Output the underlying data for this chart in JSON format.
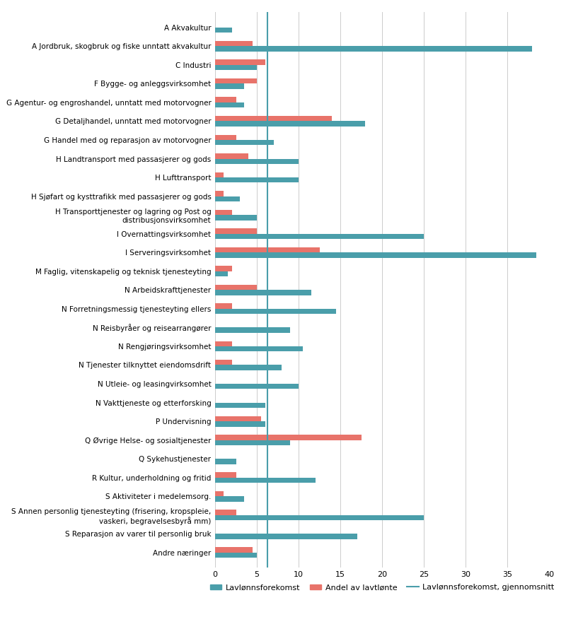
{
  "categories": [
    "A Akvakultur",
    "A Jordbruk, skogbruk og fiske unntatt akvakultur",
    "C Industri",
    "F Bygge- og anleggsvirksomhet",
    "G Agentur- og engroshandel, unntatt med motorvogner",
    "G Detaljhandel, unntatt med motorvogner",
    "G Handel med og reparasjon av motorvogner",
    "H Landtransport med passasjerer og gods",
    "H Lufttransport",
    "H Sjøfart og kysttrafikk med passasjerer og gods",
    "H Transporttjenester og lagring og Post og\ndistribusjonsvirksomhet",
    "I Overnattingsvirksomhet",
    "I Serveringsvirksomhet",
    "M Faglig, vitenskapelig og teknisk tjenesteyting",
    "N Arbeidskrafttjenester",
    "N Forretningsmessig tjenesteyting ellers",
    "N Reisbyråer og reisearrangører",
    "N Rengjøringsvirksomhet",
    "N Tjenester tilknyttet eiendomsdrift",
    "N Utleie- og leasingvirksomhet",
    "N Vakttjeneste og etterforsking",
    "P Undervisning",
    "Q Øvrige Helse- og sosialtjenester",
    "Q Sykehustjenester",
    "R Kultur, underholdning og fritid",
    "S Aktiviteter i medelemsorg.",
    "S Annen personlig tjenesteyting (frisering, kropspleie,\nvaskeri, begravelsesbyrå mm)",
    "S Reparasjon av varer til personlig bruk",
    "Andre næringer"
  ],
  "lavlonnsforekomst": [
    2.0,
    38.0,
    5.0,
    3.5,
    3.5,
    18.0,
    7.0,
    10.0,
    10.0,
    3.0,
    5.0,
    25.0,
    38.5,
    1.5,
    11.5,
    14.5,
    9.0,
    10.5,
    8.0,
    10.0,
    6.0,
    6.0,
    9.0,
    2.5,
    12.0,
    3.5,
    25.0,
    17.0,
    5.0
  ],
  "andel_lavlonte": [
    0.0,
    4.5,
    6.0,
    5.0,
    2.5,
    14.0,
    2.5,
    4.0,
    1.0,
    1.0,
    2.0,
    5.0,
    12.5,
    2.0,
    5.0,
    2.0,
    0.0,
    2.0,
    2.0,
    0.0,
    0.0,
    5.5,
    17.5,
    0.0,
    2.5,
    1.0,
    2.5,
    0.0,
    4.5
  ],
  "gjennomsnitt": 6.3,
  "color_lavlonns": "#4a9eaa",
  "color_andel": "#e8736a",
  "xlim": [
    0,
    40
  ],
  "xticks": [
    0,
    5,
    10,
    15,
    20,
    25,
    30,
    35,
    40
  ],
  "bar_height": 0.28,
  "background_color": "#ffffff",
  "grid_color": "#cccccc",
  "legend_lavlonns": "Lavlønnsforekomst",
  "legend_andel": "Andel av lavtlønte",
  "legend_gjennomsnitt": "Lavlønnsforekomst, gjennomsnitt"
}
